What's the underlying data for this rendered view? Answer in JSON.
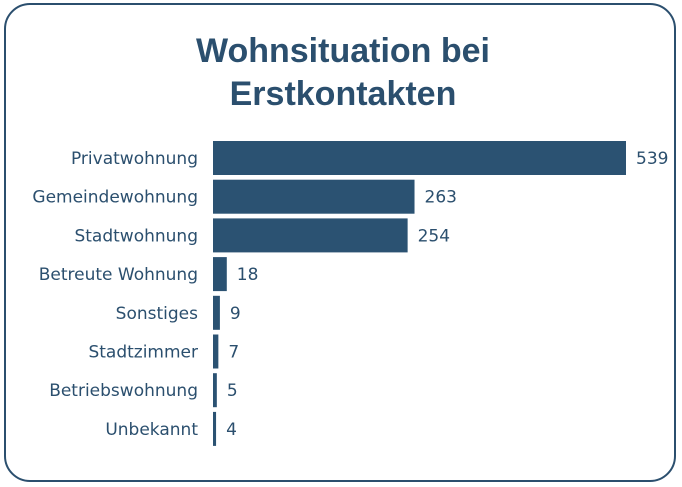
{
  "chart_data": {
    "type": "hbar",
    "title": "Wohnsituation bei Erstkontakten",
    "categories": [
      "Privatwohnung",
      "Gemeindewohnung",
      "Stadtwohnung",
      "Betreute Wohnung",
      "Sonstiges",
      "Stadtzimmer",
      "Betriebswohnung",
      "Unbekannt"
    ],
    "values": [
      539,
      263,
      254,
      18,
      9,
      7,
      5,
      4
    ],
    "color": "#2b5272"
  }
}
